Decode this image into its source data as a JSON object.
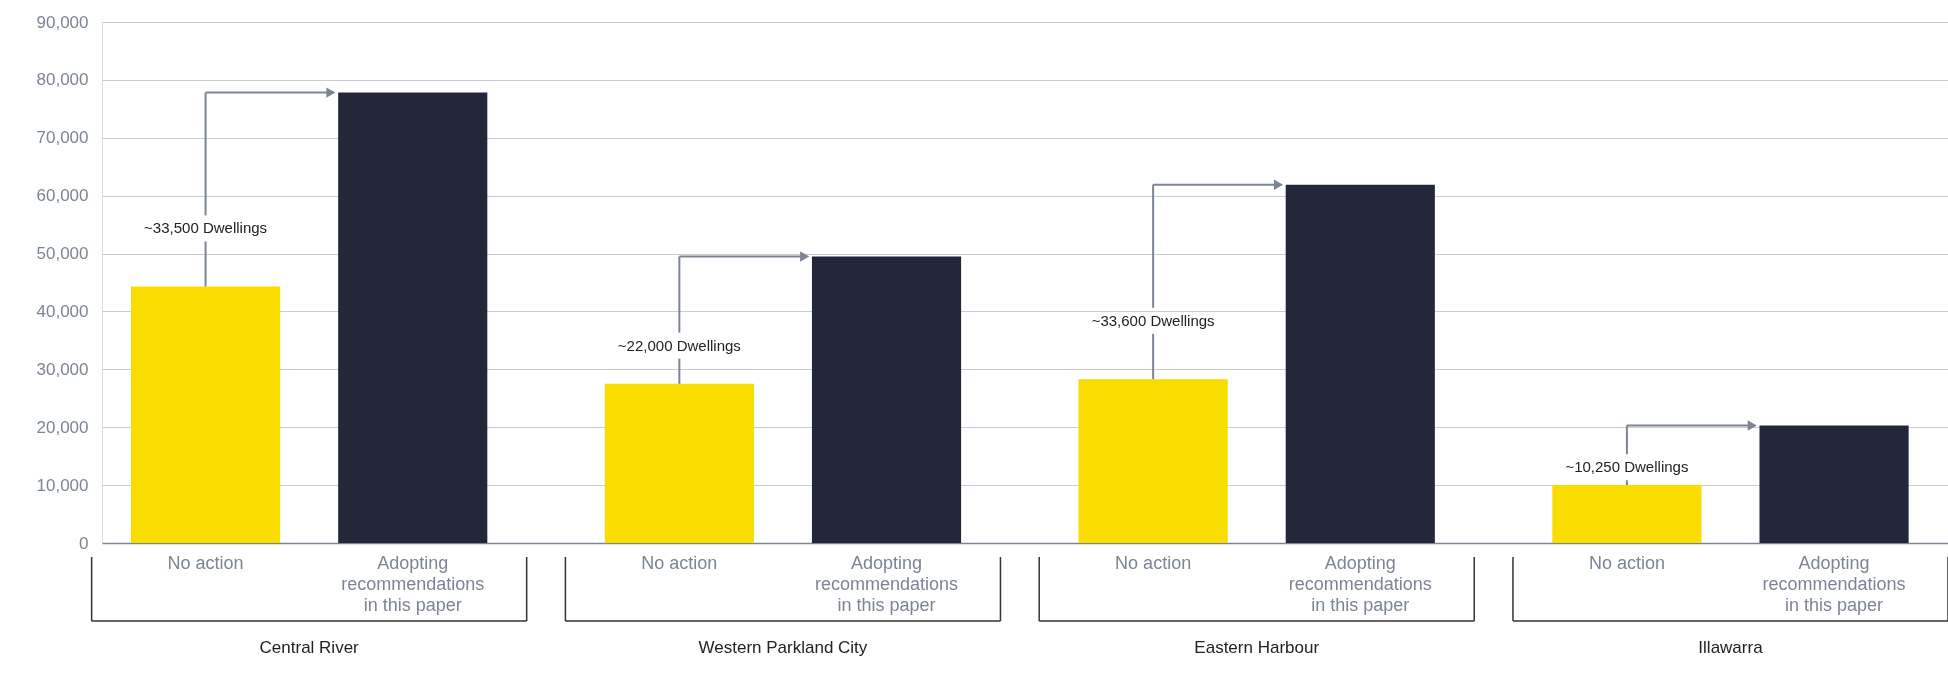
{
  "chart_data": {
    "type": "bar",
    "categories": [
      "No action",
      "Adopting recommendations in this paper",
      "No action",
      "Adopting recommendations in this paper",
      "No action",
      "Adopting recommendations in this paper",
      "No action",
      "Adopting recommendations in this paper"
    ],
    "values": [
      44300,
      77800,
      27500,
      49500,
      28300,
      61900,
      10000,
      20300
    ],
    "colors": [
      "#f9dc00",
      "#24273a",
      "#f9dc00",
      "#24273a",
      "#f9dc00",
      "#24273a",
      "#f9dc00",
      "#24273a"
    ],
    "ylim": [
      0,
      90000
    ],
    "yticks": [
      {
        "value": 0,
        "label": "0"
      },
      {
        "value": 10000,
        "label": "10,000"
      },
      {
        "value": 20000,
        "label": "20,000"
      },
      {
        "value": 30000,
        "label": "30,000"
      },
      {
        "value": 40000,
        "label": "40,000"
      },
      {
        "value": 50000,
        "label": "50,000"
      },
      {
        "value": 60000,
        "label": "60,000"
      },
      {
        "value": 70000,
        "label": "70,000"
      },
      {
        "value": 80000,
        "label": "80,000"
      },
      {
        "value": 90000,
        "label": "90,000"
      }
    ],
    "grid": "y",
    "annotations": [
      {
        "text": "~33,500 Dwellings",
        "y": 44300
      },
      {
        "text": "~22,000 Dwellings",
        "y": 27500
      },
      {
        "text": "~33,600 Dwellings",
        "y": 28300
      },
      {
        "text": "~10,250 Dwellings",
        "y": 10000
      },
      "Central River",
      "Western Parkland City",
      "Eastern Harbour",
      "Illawarra"
    ]
  }
}
